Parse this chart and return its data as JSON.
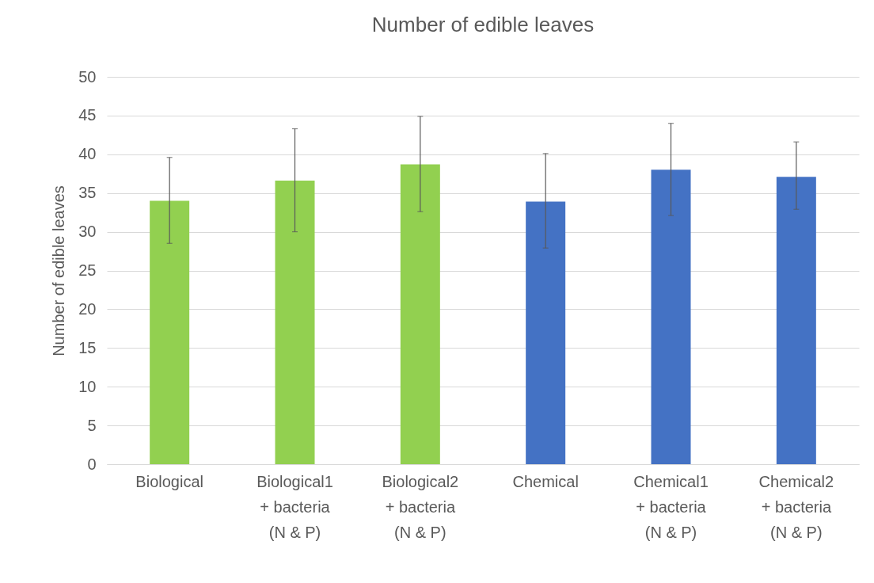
{
  "chart_data": {
    "type": "bar",
    "title": "Number of edible leaves",
    "ylabel": "Number of edible leaves",
    "categories": [
      "Biological",
      "Biological1 + bacteria (N & P)",
      "Biological2 + bacteria (N & P)",
      "Chemical",
      "Chemical1 + bacteria (N & P)",
      "Chemical2 + bacteria (N & P)"
    ],
    "values": [
      34.0,
      36.6,
      38.7,
      33.9,
      38.0,
      37.1
    ],
    "errors": [
      [
        28.5,
        39.6
      ],
      [
        30.0,
        43.3
      ],
      [
        32.6,
        44.9
      ],
      [
        27.9,
        40.1
      ],
      [
        32.1,
        44.0
      ],
      [
        32.9,
        41.6
      ]
    ],
    "colors": [
      "#92d050",
      "#92d050",
      "#92d050",
      "#4472c4",
      "#4472c4",
      "#4472c4"
    ],
    "ylim": [
      0,
      50
    ],
    "yticks": [
      0,
      5,
      10,
      15,
      20,
      25,
      30,
      35,
      40,
      45,
      50
    ],
    "grid": "y"
  }
}
